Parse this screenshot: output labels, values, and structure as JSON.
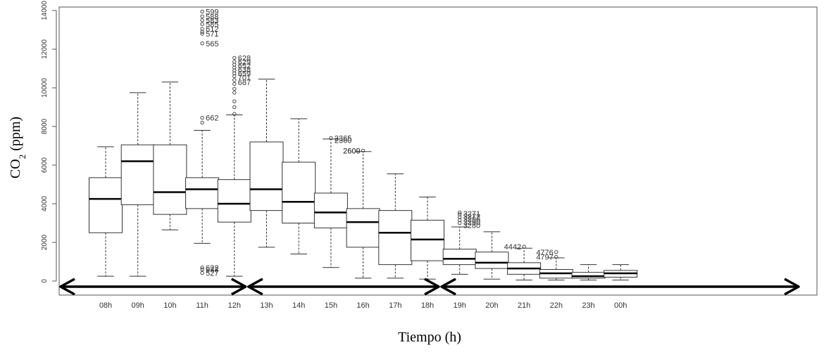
{
  "chart_data": {
    "type": "box",
    "xlabel": "Tiempo (h)",
    "ylabel_main": "CO",
    "ylabel_sub": "2",
    "ylabel_unit": " (ppm)",
    "ylim": [
      0,
      14000
    ],
    "yticks": [
      0,
      2000,
      4000,
      6000,
      8000,
      10000,
      12000,
      14000
    ],
    "categories": [
      "08h",
      "09h",
      "10h",
      "11h",
      "12h",
      "13h",
      "14h",
      "15h",
      "16h",
      "17h",
      "18h",
      "19h",
      "20h",
      "21h",
      "22h",
      "23h",
      "00h"
    ],
    "boxes": [
      {
        "x": "08h",
        "low": 250,
        "q1": 2500,
        "median": 4250,
        "q3": 5350,
        "high": 6950,
        "outliers": []
      },
      {
        "x": "09h",
        "low": 250,
        "q1": 3950,
        "median": 6200,
        "q3": 7050,
        "high": 9750,
        "outliers": []
      },
      {
        "x": "10h",
        "low": 2650,
        "q1": 3450,
        "median": 4600,
        "q3": 7050,
        "high": 10300,
        "outliers": []
      },
      {
        "x": "11h",
        "low": 1950,
        "q1": 3750,
        "median": 4750,
        "q3": 5350,
        "high": 7800,
        "outliers": [
          13950,
          13700,
          13500,
          13300,
          13050,
          12900,
          12800,
          12300,
          8450,
          8200,
          700,
          600,
          420
        ]
      },
      {
        "x": "12h",
        "low": 250,
        "q1": 3050,
        "median": 4000,
        "q3": 5250,
        "high": 8600,
        "outliers": [
          11550,
          11350,
          11200,
          11050,
          10900,
          10750,
          10600,
          10400,
          10200,
          9950,
          9750,
          9300,
          9000,
          8650
        ]
      },
      {
        "x": "13h",
        "low": 1750,
        "q1": 3650,
        "median": 4750,
        "q3": 7200,
        "high": 10450,
        "outliers": []
      },
      {
        "x": "14h",
        "low": 1400,
        "q1": 3000,
        "median": 4100,
        "q3": 6150,
        "high": 8400,
        "outliers": []
      },
      {
        "x": "15h",
        "low": 700,
        "q1": 2750,
        "median": 3550,
        "q3": 4550,
        "high": 7350,
        "outliers": [
          7400
        ]
      },
      {
        "x": "16h",
        "low": 150,
        "q1": 1750,
        "median": 3050,
        "q3": 3750,
        "high": 6700,
        "outliers": [
          6750
        ]
      },
      {
        "x": "17h",
        "low": 150,
        "q1": 850,
        "median": 2500,
        "q3": 3650,
        "high": 5550,
        "outliers": []
      },
      {
        "x": "18h",
        "low": 100,
        "q1": 1050,
        "median": 2150,
        "q3": 3150,
        "high": 4350,
        "outliers": []
      },
      {
        "x": "19h",
        "low": 350,
        "q1": 850,
        "median": 1150,
        "q3": 1650,
        "high": 2800,
        "outliers": [
          3550,
          3450,
          3300,
          3150,
          3000
        ]
      },
      {
        "x": "20h",
        "low": 100,
        "q1": 650,
        "median": 950,
        "q3": 1500,
        "high": 2550,
        "outliers": []
      },
      {
        "x": "21h",
        "low": 50,
        "q1": 350,
        "median": 650,
        "q3": 950,
        "high": 1700,
        "outliers": [
          1780
        ]
      },
      {
        "x": "22h",
        "low": 50,
        "q1": 150,
        "median": 400,
        "q3": 600,
        "high": 1200,
        "outliers": [
          1500,
          1250
        ]
      },
      {
        "x": "23h",
        "low": 50,
        "q1": 150,
        "median": 250,
        "q3": 450,
        "high": 850,
        "outliers": []
      },
      {
        "x": "00h",
        "low": 50,
        "q1": 200,
        "median": 400,
        "q3": 550,
        "high": 850,
        "outliers": []
      }
    ],
    "outlier_labels": [
      {
        "x": "11h",
        "y": 13950,
        "text": "599"
      },
      {
        "x": "11h",
        "y": 13700,
        "text": "588"
      },
      {
        "x": "11h",
        "y": 13500,
        "text": "583"
      },
      {
        "x": "11h",
        "y": 13300,
        "text": "585"
      },
      {
        "x": "11h",
        "y": 13050,
        "text": "612"
      },
      {
        "x": "11h",
        "y": 12800,
        "text": "571"
      },
      {
        "x": "11h",
        "y": 12300,
        "text": "565"
      },
      {
        "x": "11h",
        "y": 8450,
        "text": "662"
      },
      {
        "x": "11h",
        "y": 700,
        "text": "622"
      },
      {
        "x": "11h",
        "y": 600,
        "text": "633"
      },
      {
        "x": "11h",
        "y": 420,
        "text": "527"
      },
      {
        "x": "12h",
        "y": 11550,
        "text": "628"
      },
      {
        "x": "12h",
        "y": 11350,
        "text": "629"
      },
      {
        "x": "12h",
        "y": 11150,
        "text": "652"
      },
      {
        "x": "12h",
        "y": 10950,
        "text": "638"
      },
      {
        "x": "12h",
        "y": 10750,
        "text": "659"
      },
      {
        "x": "12h",
        "y": 10550,
        "text": "701"
      },
      {
        "x": "12h",
        "y": 10300,
        "text": "687"
      },
      {
        "x": "15h",
        "y": 7400,
        "text": "2365"
      },
      {
        "x": "15h",
        "y": 7300,
        "text": "2360"
      },
      {
        "x": "16h",
        "y": 6750,
        "text": "2609"
      },
      {
        "x": "16h",
        "y": 6750,
        "text": "2600"
      },
      {
        "x": "19h",
        "y": 3500,
        "text": "3271"
      },
      {
        "x": "19h",
        "y": 3350,
        "text": "3272"
      },
      {
        "x": "19h",
        "y": 3200,
        "text": "3296"
      },
      {
        "x": "19h",
        "y": 3050,
        "text": "3290"
      },
      {
        "x": "19h",
        "y": 2900,
        "text": "3280"
      },
      {
        "x": "21h",
        "y": 1780,
        "text": "4442"
      },
      {
        "x": "22h",
        "y": 1500,
        "text": "4776"
      },
      {
        "x": "22h",
        "y": 1250,
        "text": "4797"
      }
    ],
    "period_arrows": [
      {
        "from": "08h",
        "to": "12h"
      },
      {
        "from": "12h",
        "to": "18h"
      },
      {
        "from": "18h",
        "to": "00h"
      }
    ]
  }
}
